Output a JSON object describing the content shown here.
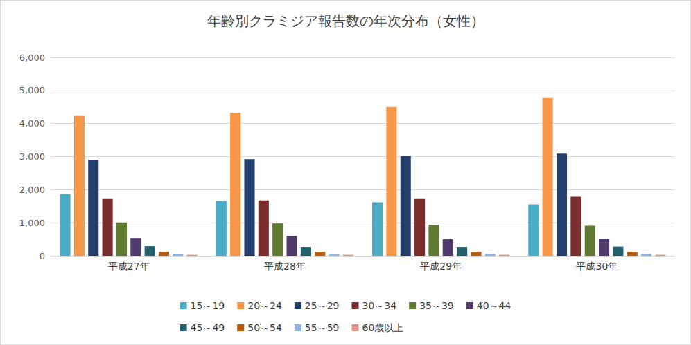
{
  "chart_data": {
    "type": "bar",
    "title": "年齢別クラミジア報告数の年次分布（女性）",
    "categories": [
      "平成27年",
      "平成28年",
      "平成29年",
      "平成30年"
    ],
    "series": [
      {
        "name": "15～19",
        "color": "#4bacc6",
        "values": [
          1870,
          1660,
          1620,
          1560
        ]
      },
      {
        "name": "20～24",
        "color": "#f79646",
        "values": [
          4230,
          4330,
          4500,
          4770
        ]
      },
      {
        "name": "25～29",
        "color": "#243f6b",
        "values": [
          2900,
          2920,
          3020,
          3090
        ]
      },
      {
        "name": "30～34",
        "color": "#7b2c2c",
        "values": [
          1720,
          1680,
          1720,
          1790
        ]
      },
      {
        "name": "35～39",
        "color": "#5f7a31",
        "values": [
          1010,
          980,
          940,
          910
        ]
      },
      {
        "name": "40～44",
        "color": "#4f3a6b",
        "values": [
          540,
          600,
          500,
          510
        ]
      },
      {
        "name": "45～49",
        "color": "#23606e",
        "values": [
          290,
          270,
          270,
          280
        ]
      },
      {
        "name": "50～54",
        "color": "#b85c0c",
        "values": [
          120,
          120,
          120,
          120
        ]
      },
      {
        "name": "55～59",
        "color": "#8db3e2",
        "values": [
          40,
          40,
          60,
          60
        ]
      },
      {
        "name": "60歳以上",
        "color": "#e6908b",
        "values": [
          30,
          30,
          30,
          30
        ]
      }
    ],
    "ylim": [
      0,
      6000
    ],
    "yticks": [
      0,
      {
        "value": 1000,
        "label": "1,000"
      },
      {
        "value": 2000,
        "label": "2,000"
      },
      {
        "value": 3000,
        "label": "3,000"
      },
      {
        "value": 4000,
        "label": "4,000"
      },
      {
        "value": 5000,
        "label": "5,000"
      },
      {
        "value": 6000,
        "label": "6,000"
      }
    ],
    "grid": true,
    "legend": "bottom"
  }
}
